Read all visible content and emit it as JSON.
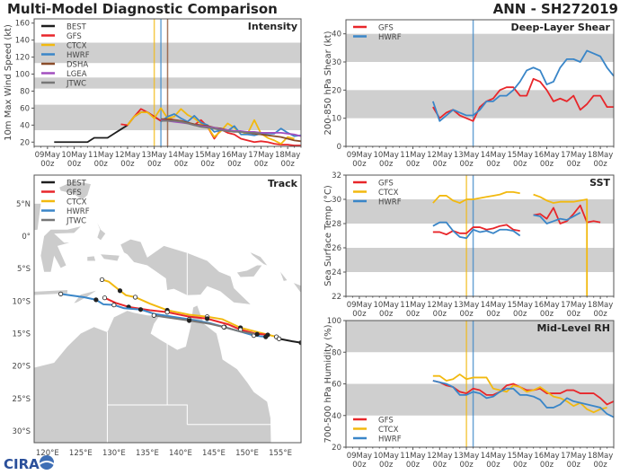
{
  "header": {
    "title": "Multi-Model Diagnostic Comparison",
    "storm": "ANN - SH272019",
    "logo_text": "CIRA"
  },
  "colors": {
    "BEST": "#1e1e1e",
    "GFS": "#e8262a",
    "CTCX": "#f2b90f",
    "HWRF": "#3a86c8",
    "DSHA": "#8b4d2a",
    "LGEA": "#a24fbf",
    "JTWC": "#777777",
    "band": "#cfcfcf",
    "land": "#cccccc"
  },
  "chart_data": [
    {
      "id": "intensity",
      "type": "line",
      "title": "Intensity",
      "ylabel": "10m Max Wind Speed (kt)",
      "xlim": [
        "08May 12z",
        "18May 12z"
      ],
      "ylim": [
        15,
        165
      ],
      "yticks": [
        20,
        40,
        60,
        80,
        100,
        120,
        140,
        160
      ],
      "xticks": [
        "09May 00z",
        "10May 00z",
        "11May 00z",
        "12May 00z",
        "13May 00z",
        "14May 00z",
        "15May 00z",
        "16May 00z",
        "17May 00z",
        "18May 00z"
      ],
      "bands": [
        [
          34,
          64
        ],
        [
          83,
          96
        ],
        [
          113,
          137
        ]
      ],
      "legend": "top-left",
      "init_lines": [
        {
          "model": "CTCX",
          "time": "13May 00z"
        },
        {
          "model": "HWRF",
          "time": "13May 06z"
        },
        {
          "model": "DSHA",
          "time": "13May 12z"
        }
      ],
      "step_hours": 6,
      "series": [
        {
          "name": "BEST",
          "start": "09May 06z",
          "values": [
            20,
            20,
            20,
            20,
            20,
            20,
            25,
            25,
            25,
            30,
            35,
            40,
            50,
            55,
            55,
            50,
            45,
            45
          ]
        },
        {
          "name": "GFS",
          "start": "11May 18z",
          "values": [
            41,
            40,
            50,
            59,
            55,
            50,
            45,
            48,
            46,
            45,
            43,
            40,
            46,
            38,
            24,
            35,
            31,
            29,
            24,
            22,
            20,
            21,
            20,
            18,
            17,
            17,
            16,
            16
          ]
        },
        {
          "name": "CTCX",
          "start": "12May 00z",
          "values": [
            40,
            50,
            55,
            55,
            48,
            60,
            48,
            50,
            59,
            52,
            48,
            42,
            38,
            26,
            33,
            42,
            37,
            29,
            30,
            46,
            30,
            25,
            22,
            18,
            26,
            24
          ]
        },
        {
          "name": "HWRF",
          "start": "13May 06z",
          "values": [
            44,
            50,
            53,
            48,
            44,
            51,
            43,
            40,
            32,
            34,
            33,
            39,
            29,
            29,
            28,
            30,
            30,
            30,
            36,
            31,
            27,
            28
          ]
        },
        {
          "name": "DSHA",
          "start": "13May 06z",
          "values": [
            47,
            47,
            46,
            45,
            43,
            41,
            40,
            39,
            37,
            36,
            34,
            33,
            32,
            31,
            30,
            29,
            28,
            27,
            26,
            24,
            22,
            21
          ]
        },
        {
          "name": "LGEA",
          "start": "13May 06z",
          "values": [
            46,
            45,
            44,
            43,
            42,
            40,
            39,
            38,
            37,
            35,
            34,
            33,
            33,
            32,
            32,
            31,
            31,
            31,
            31,
            30,
            29,
            27
          ]
        },
        {
          "name": "JTWC",
          "start": "13May 06z",
          "values": [
            45,
            45,
            45,
            44,
            42,
            40,
            38,
            37,
            36,
            34,
            33,
            32,
            32,
            31,
            31,
            30
          ]
        }
      ]
    },
    {
      "id": "shear",
      "type": "line",
      "title": "Deep-Layer Shear",
      "ylabel": "200-850 hPa Shear (kt)",
      "xlim": [
        "08May 12z",
        "18May 12z"
      ],
      "ylim": [
        0,
        45
      ],
      "yticks": [
        0,
        10,
        20,
        30,
        40
      ],
      "xticks": [
        "09May 00z",
        "10May 00z",
        "11May 00z",
        "12May 00z",
        "13May 00z",
        "14May 00z",
        "15May 00z",
        "16May 00z",
        "17May 00z",
        "18May 00z"
      ],
      "bands": [
        [
          10,
          20
        ],
        [
          30,
          40
        ]
      ],
      "legend": "top-left",
      "init_lines": [
        {
          "model": "HWRF",
          "time": "13May 06z"
        }
      ],
      "step_hours": 6,
      "series": [
        {
          "name": "GFS",
          "start": "11May 18z",
          "values": [
            14,
            10,
            12,
            13,
            11,
            10,
            9,
            14,
            16,
            17,
            20,
            21,
            21,
            18,
            18,
            24,
            23,
            20,
            16,
            17,
            16,
            18,
            13,
            15,
            18,
            18,
            14,
            14
          ]
        },
        {
          "name": "HWRF",
          "start": "11May 18z",
          "values": [
            16,
            9,
            11,
            13,
            12,
            11,
            11,
            13,
            16,
            16,
            18,
            18,
            20,
            23,
            27,
            28,
            27,
            22,
            23,
            28,
            31,
            31,
            30,
            34,
            33,
            32,
            28,
            25
          ]
        }
      ]
    },
    {
      "id": "sst",
      "type": "line",
      "title": "SST",
      "ylabel": "Sea Surface Temp (°C)",
      "xlim": [
        "08May 12z",
        "18May 12z"
      ],
      "ylim": [
        22,
        32
      ],
      "yticks": [
        22,
        24,
        26,
        28,
        30,
        32
      ],
      "xticks": [
        "09May 00z",
        "10May 00z",
        "11May 00z",
        "12May 00z",
        "13May 00z",
        "14May 00z",
        "15May 00z",
        "16May 00z",
        "17May 00z",
        "18May 00z"
      ],
      "bands": [
        [
          24,
          26
        ],
        [
          28,
          30
        ]
      ],
      "legend": "top-left",
      "init_lines": [
        {
          "model": "CTCX",
          "time": "13May 00z"
        },
        {
          "model": "HWRF",
          "time": "13May 06z"
        }
      ],
      "step_hours": 6,
      "series": [
        {
          "name": "GFS",
          "start": "11May 18z",
          "values": [
            27.3,
            27.3,
            27.1,
            27.4,
            27.2,
            27.2,
            27.7,
            27.7,
            27.5,
            27.6,
            27.8,
            27.9,
            27.5,
            27.4,
            null,
            28.7,
            28.8,
            28.4,
            29.3,
            28.0,
            28.2,
            28.8,
            29.5,
            28.1,
            28.2,
            28.1
          ]
        },
        {
          "name": "CTCX",
          "start": "11May 18z",
          "values": [
            29.7,
            30.3,
            30.3,
            29.9,
            29.7,
            30.0,
            30.0,
            30.1,
            30.2,
            30.3,
            30.4,
            30.6,
            30.6,
            30.5,
            null,
            30.4,
            30.2,
            29.9,
            29.7,
            29.8,
            29.8,
            29.8,
            29.9,
            30.0
          ],
          "end_drop": 22
        },
        {
          "name": "HWRF",
          "start": "11May 18z",
          "values": [
            27.8,
            28.1,
            28.1,
            27.4,
            26.9,
            26.8,
            27.5,
            27.3,
            27.4,
            27.2,
            27.5,
            27.5,
            27.4,
            27.0,
            null,
            28.7,
            28.6,
            28.0,
            28.2,
            28.4,
            28.3,
            28.6,
            28.9
          ]
        }
      ]
    },
    {
      "id": "rh",
      "type": "line",
      "title": "Mid-Level RH",
      "ylabel": "700-500 hPa Humidity (%)",
      "xlim": [
        "08May 12z",
        "18May 12z"
      ],
      "ylim": [
        20,
        100
      ],
      "yticks": [
        20,
        40,
        60,
        80,
        100
      ],
      "xticks": [
        "09May 00z",
        "10May 00z",
        "11May 00z",
        "12May 00z",
        "13May 00z",
        "14May 00z",
        "15May 00z",
        "16May 00z",
        "17May 00z",
        "18May 00z"
      ],
      "bands": [
        [
          40,
          60
        ],
        [
          80,
          100
        ]
      ],
      "legend": "bottom-left",
      "init_lines": [
        {
          "model": "CTCX",
          "time": "13May 00z"
        },
        {
          "model": "HWRF",
          "time": "13May 06z"
        }
      ],
      "step_hours": 6,
      "series": [
        {
          "name": "GFS",
          "start": "11May 18z",
          "values": [
            62,
            61,
            59,
            58,
            55,
            54,
            57,
            56,
            53,
            53,
            55,
            59,
            60,
            58,
            56,
            56,
            57,
            54,
            54,
            54,
            56,
            56,
            54,
            54,
            54,
            51,
            47,
            49
          ]
        },
        {
          "name": "CTCX",
          "start": "11May 18z",
          "values": [
            65,
            65,
            62,
            63,
            66,
            63,
            64,
            64,
            64,
            57,
            56,
            55,
            59,
            58,
            55,
            56,
            58,
            55,
            52,
            51,
            49,
            46,
            48,
            44,
            42,
            44,
            45
          ]
        },
        {
          "name": "HWRF",
          "start": "11May 18z",
          "values": [
            62,
            61,
            60,
            58,
            53,
            53,
            55,
            54,
            51,
            52,
            55,
            57,
            57,
            53,
            53,
            52,
            50,
            45,
            45,
            47,
            51,
            49,
            48,
            47,
            46,
            45,
            41,
            39
          ]
        }
      ]
    },
    {
      "id": "track",
      "type": "scatter",
      "title": "Track",
      "lon_range": [
        118,
        158.1
      ],
      "lat_range": [
        -31.8,
        9.4
      ],
      "xticks": [
        {
          "lon": 120,
          "label": "120°E"
        },
        {
          "lon": 125,
          "label": "125°E"
        },
        {
          "lon": 130,
          "label": "130°E"
        },
        {
          "lon": 135,
          "label": "135°E"
        },
        {
          "lon": 140,
          "label": "140°E"
        },
        {
          "lon": 145,
          "label": "145°E"
        },
        {
          "lon": 150,
          "label": "150°E"
        },
        {
          "lon": 155,
          "label": "155°E"
        }
      ],
      "yticks": [
        {
          "lat": 5,
          "label": "5°N"
        },
        {
          "lat": 0,
          "label": "0°"
        },
        {
          "lat": -5,
          "label": "5°S"
        },
        {
          "lat": -10,
          "label": "10°S"
        },
        {
          "lat": -15,
          "label": "15°S"
        },
        {
          "lat": -20,
          "label": "20°S"
        },
        {
          "lat": -25,
          "label": "25°S"
        },
        {
          "lat": -30,
          "label": "30°S"
        }
      ],
      "legend": "top-left",
      "legend_names": [
        "BEST",
        "GFS",
        "CTCX",
        "HWRF",
        "JTWC"
      ],
      "series": [
        {
          "name": "CTCX",
          "points": [
            [
              128.2,
              -6.7
            ],
            [
              129.2,
              -7.0
            ],
            [
              130.9,
              -8.4
            ],
            [
              131.8,
              -9.1
            ],
            [
              133.2,
              -9.4
            ],
            [
              135.4,
              -10.4
            ],
            [
              138,
              -11.4
            ],
            [
              141.3,
              -12.1
            ],
            [
              144,
              -12.4
            ],
            [
              146.3,
              -12.8
            ],
            [
              149,
              -14.1
            ],
            [
              151.7,
              -14.8
            ],
            [
              154.4,
              -15.5
            ]
          ]
        },
        {
          "name": "GFS",
          "points": [
            [
              128.6,
              -9.5
            ],
            [
              130.3,
              -10.3
            ],
            [
              132.2,
              -10.9
            ],
            [
              135.4,
              -11.4
            ],
            [
              138,
              -11.7
            ],
            [
              141.3,
              -12.4
            ],
            [
              144,
              -12.7
            ],
            [
              147.2,
              -13.6
            ],
            [
              149,
              -14.4
            ],
            [
              151.2,
              -15.0
            ],
            [
              153.1,
              -15.2
            ]
          ]
        },
        {
          "name": "HWRF",
          "points": [
            [
              122,
              -8.9
            ],
            [
              125.5,
              -9.4
            ],
            [
              127.3,
              -9.8
            ],
            [
              128.4,
              -10.5
            ],
            [
              130,
              -10.6
            ],
            [
              131.5,
              -11.1
            ],
            [
              134,
              -11.3
            ],
            [
              136.2,
              -12.0
            ],
            [
              141.3,
              -12.8
            ],
            [
              144.4,
              -13.4
            ],
            [
              146.6,
              -14.0
            ],
            [
              149,
              -14.7
            ],
            [
              151,
              -15.3
            ],
            [
              152.8,
              -15.5
            ]
          ]
        },
        {
          "name": "JTWC",
          "points": [
            [
              136,
              -12.2
            ],
            [
              137.2,
              -12.4
            ],
            [
              141.3,
              -13.0
            ],
            [
              144.4,
              -13.5
            ],
            [
              146.5,
              -14.0
            ],
            [
              149,
              -14.7
            ],
            [
              151.5,
              -15.1
            ]
          ]
        },
        {
          "name": "BEST",
          "points": [
            [
              154.8,
              -15.8
            ],
            [
              156.8,
              -16.2
            ],
            [
              158.1,
              -16.4
            ]
          ]
        }
      ]
    }
  ]
}
